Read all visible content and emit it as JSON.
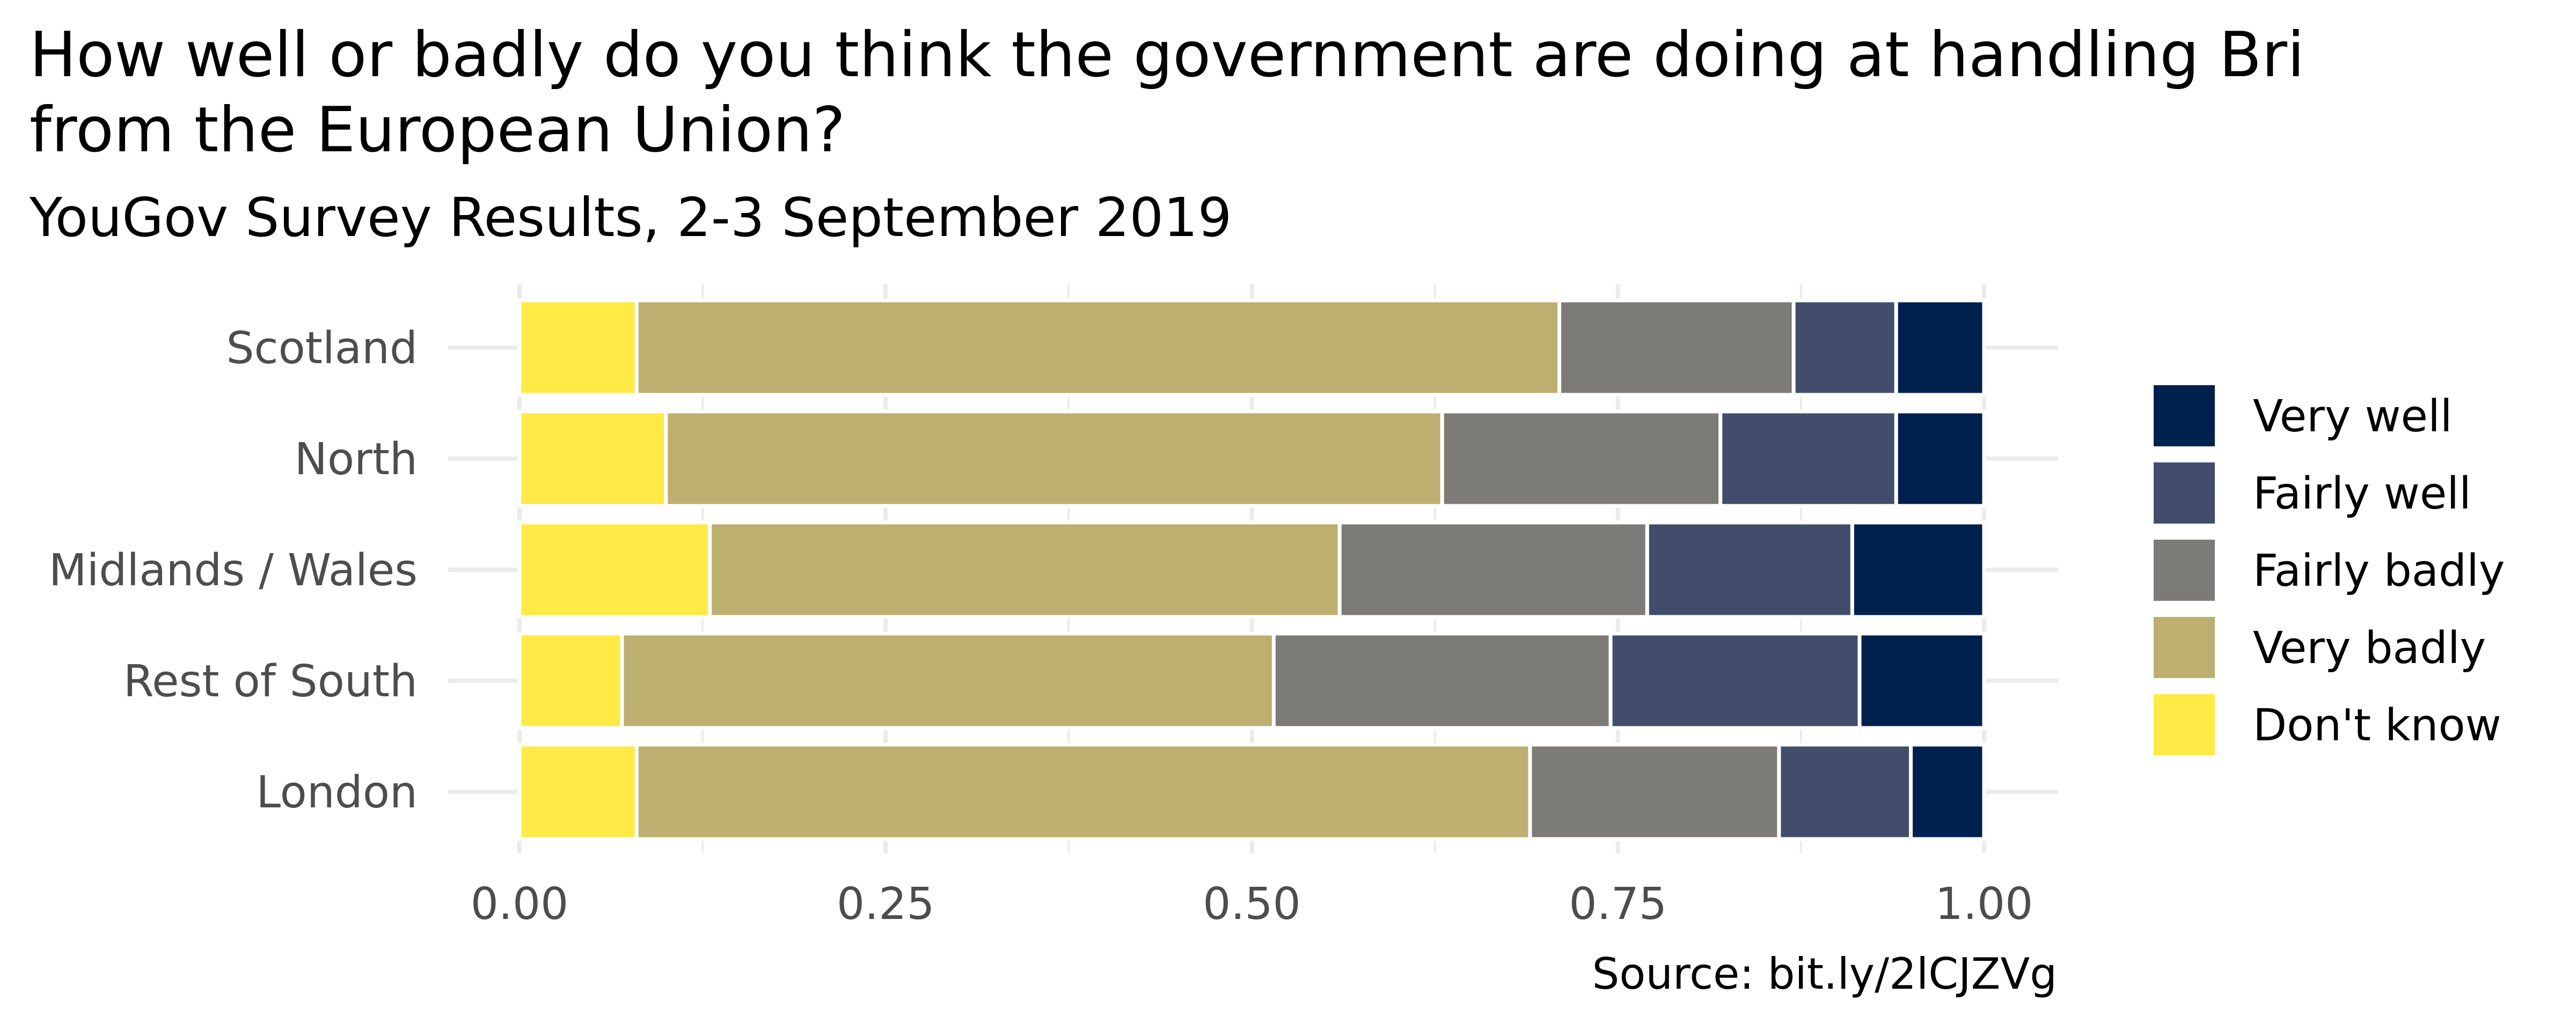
{
  "chart_data": {
    "type": "bar",
    "orientation": "horizontal",
    "stacked": true,
    "title": "How well or badly do you think the government are doing at handling Britain's exit from the European Union?",
    "title_lines": [
      "How well or badly do you think the government are doing at handling Bri",
      "from the European Union?"
    ],
    "subtitle": "YouGov Survey Results, 2-3 September 2019",
    "caption": "Source: bit.ly/2lCJZVg",
    "xlabel": "",
    "ylabel": "",
    "xlim": [
      0,
      1
    ],
    "x_ticks": [
      "0.00",
      "0.25",
      "0.50",
      "0.75",
      "1.00"
    ],
    "grid": true,
    "legend_position": "right",
    "categories": [
      "Scotland",
      "North",
      "Midlands / Wales",
      "Rest of South",
      "London"
    ],
    "series": [
      {
        "name": "Don't know",
        "color": "#FFEA46",
        "values": [
          0.08,
          0.1,
          0.13,
          0.07,
          0.08
        ]
      },
      {
        "name": "Very badly",
        "color": "#BCAF6F",
        "values": [
          0.63,
          0.53,
          0.43,
          0.445,
          0.61
        ]
      },
      {
        "name": "Fairly badly",
        "color": "#7C7B78",
        "values": [
          0.16,
          0.19,
          0.21,
          0.23,
          0.17
        ]
      },
      {
        "name": "Fairly well",
        "color": "#414D6B",
        "values": [
          0.07,
          0.12,
          0.14,
          0.17,
          0.09
        ]
      },
      {
        "name": "Very well",
        "color": "#00204D",
        "values": [
          0.06,
          0.06,
          0.09,
          0.085,
          0.05
        ]
      }
    ],
    "legend_order": [
      "Very well",
      "Fairly well",
      "Fairly badly",
      "Very badly",
      "Don't know"
    ]
  }
}
